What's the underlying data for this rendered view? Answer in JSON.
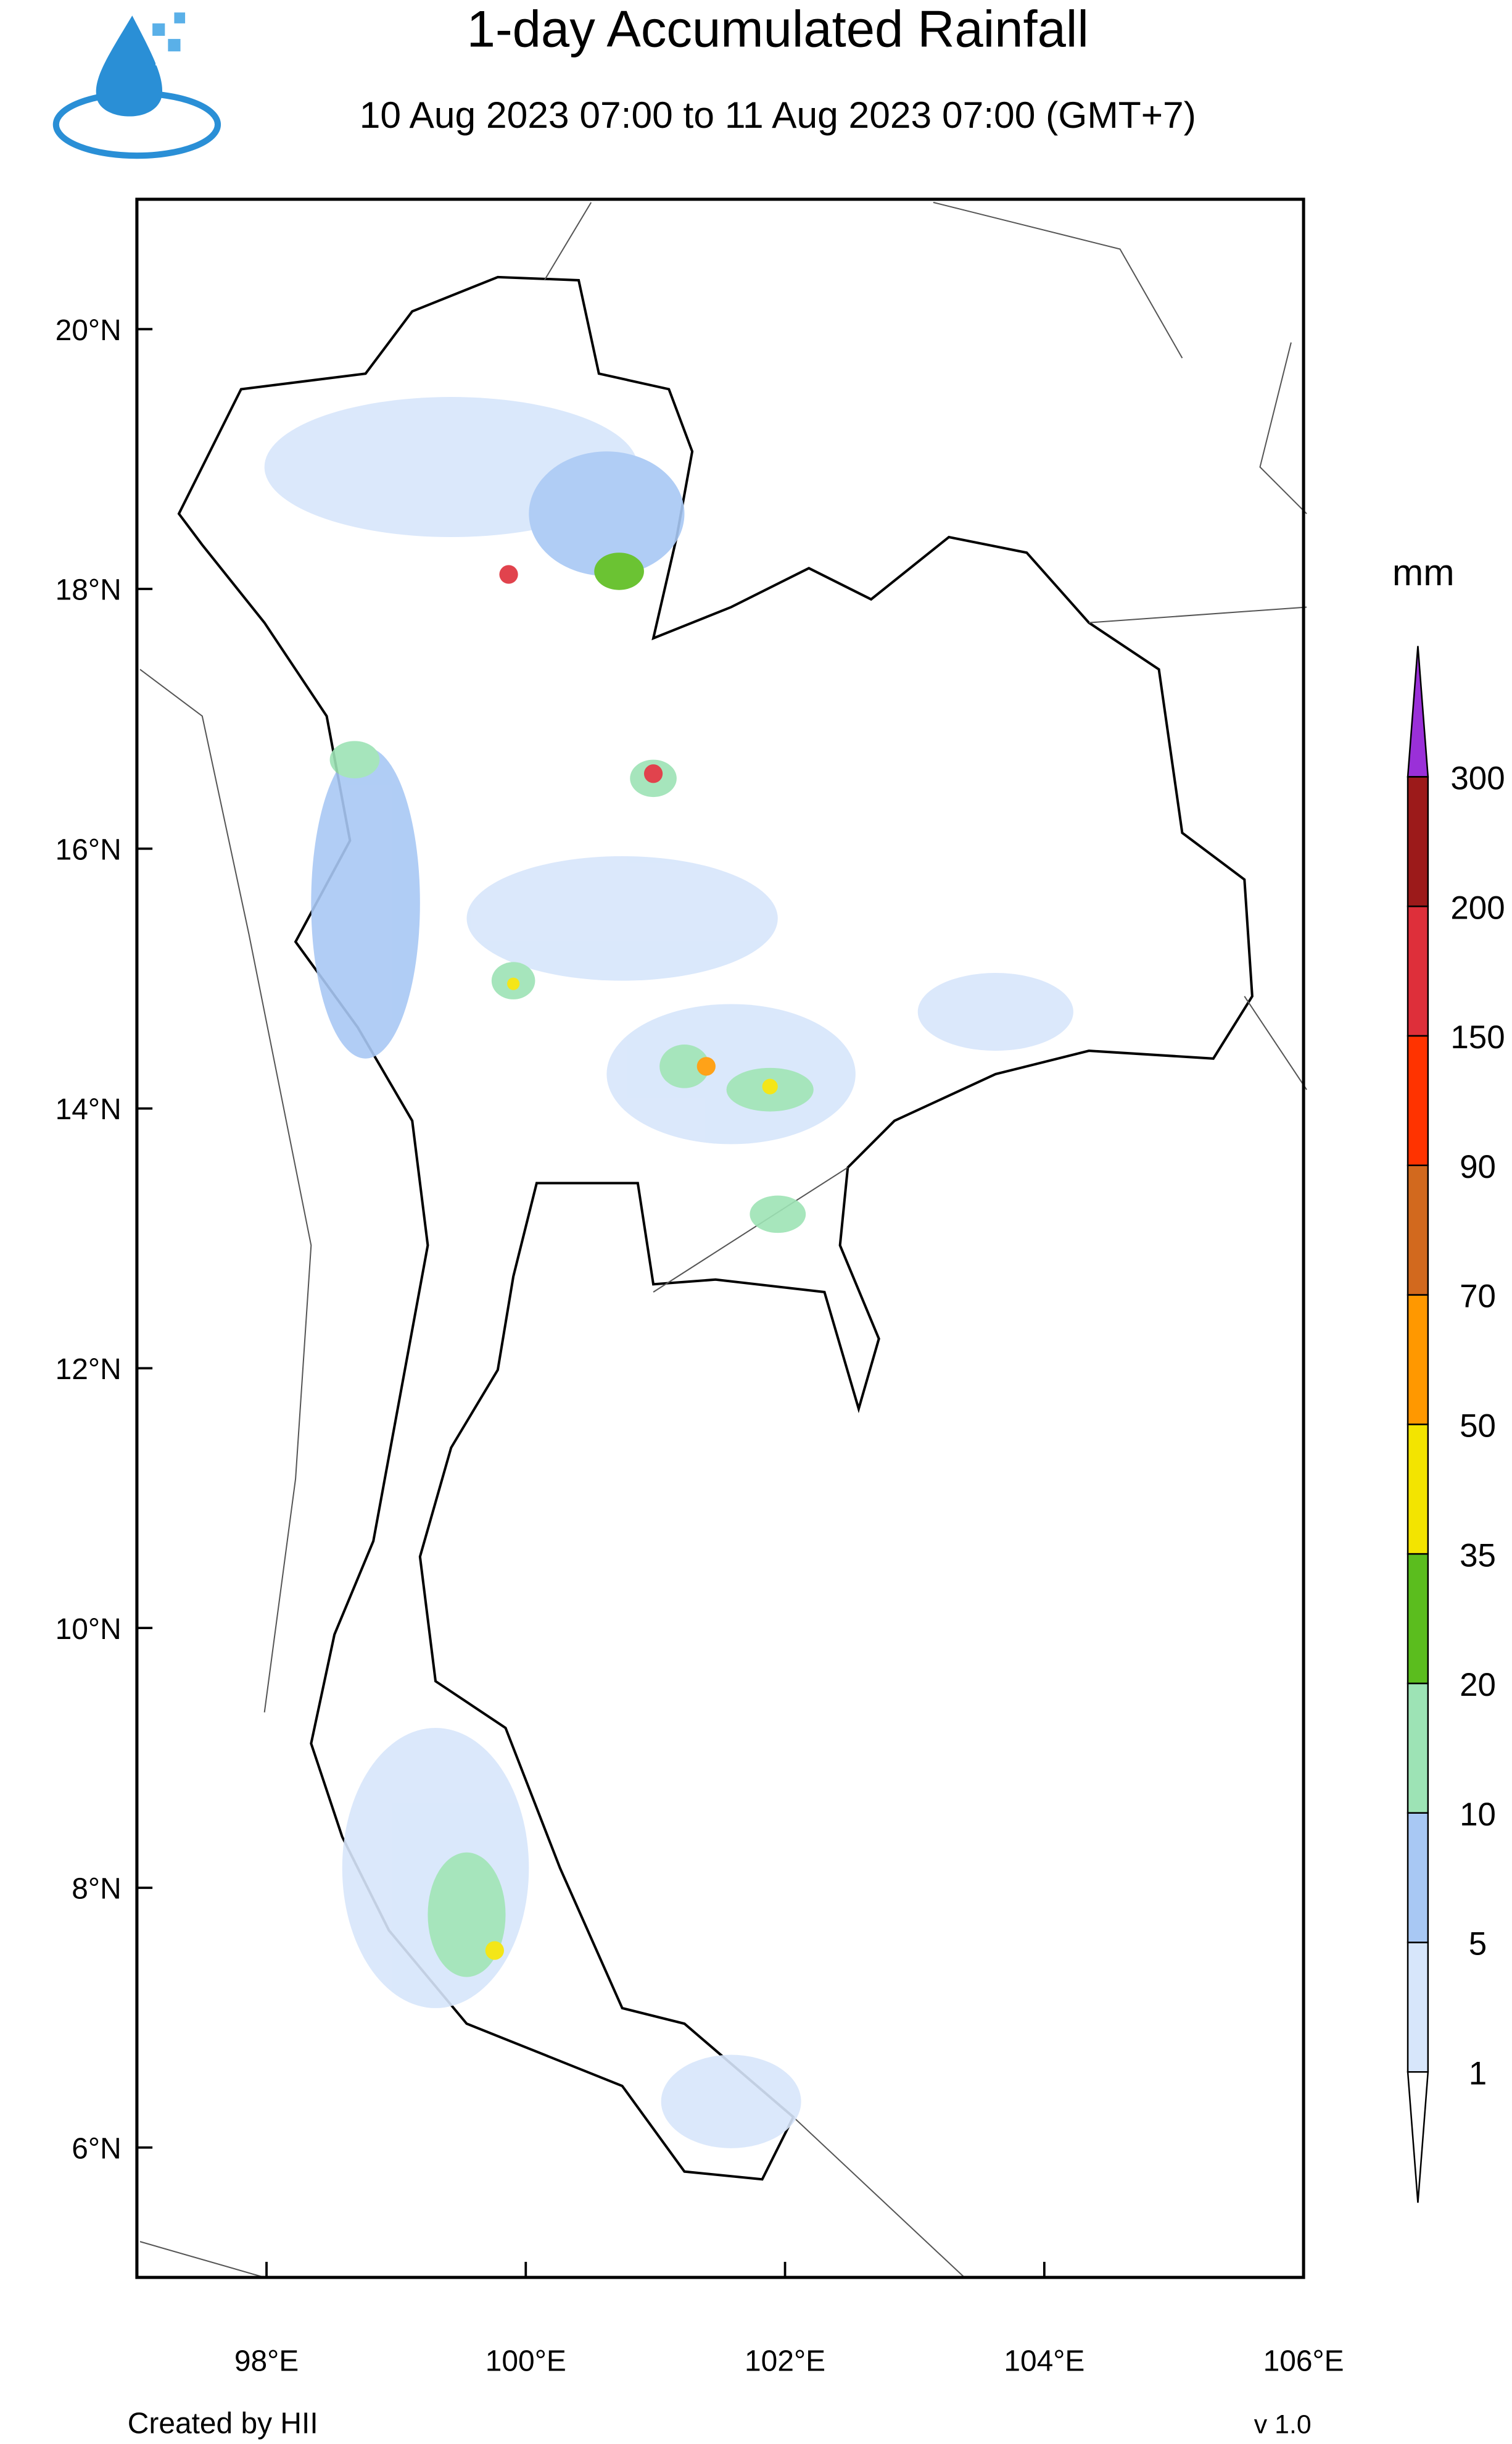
{
  "chart_data": {
    "type": "map",
    "title": "1-day Accumulated Rainfall",
    "subtitle": "10 Aug 2023 07:00 to 11 Aug 2023 07:00 (GMT+7)",
    "xlim": [
      97,
      106
    ],
    "ylim": [
      5,
      21
    ],
    "xticks": [
      {
        "value": 98,
        "label": "98°E"
      },
      {
        "value": 100,
        "label": "100°E"
      },
      {
        "value": 102,
        "label": "102°E"
      },
      {
        "value": 104,
        "label": "104°E"
      },
      {
        "value": 106,
        "label": "106°E"
      }
    ],
    "yticks": [
      {
        "value": 6,
        "label": "6°N"
      },
      {
        "value": 8,
        "label": "8°N"
      },
      {
        "value": 10,
        "label": "10°N"
      },
      {
        "value": 12,
        "label": "12°N"
      },
      {
        "value": 14,
        "label": "14°N"
      },
      {
        "value": 16,
        "label": "16°N"
      },
      {
        "value": 18,
        "label": "18°N"
      },
      {
        "value": 20,
        "label": "20°N"
      }
    ],
    "colorbar": {
      "unit": "mm",
      "levels": [
        1,
        5,
        10,
        20,
        35,
        50,
        70,
        90,
        150,
        200,
        300
      ],
      "colors": [
        "#ffffff",
        "#d7e6fb",
        "#a8c8f4",
        "#9de3b5",
        "#5bbd1e",
        "#f3e400",
        "#ff9800",
        "#d2691e",
        "#ff3300",
        "#de2f3a",
        "#9c1a1a",
        "#9a30d8"
      ]
    },
    "footer_left": "Created by HII",
    "footer_right": "v 1.0"
  }
}
